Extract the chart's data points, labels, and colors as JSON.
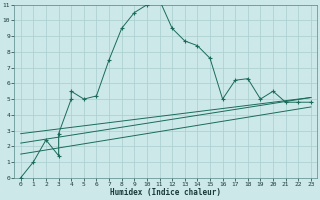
{
  "xlabel": "Humidex (Indice chaleur)",
  "bg_color": "#cce8e8",
  "grid_color": "#aacece",
  "line_color": "#1a6b5a",
  "xlim": [
    -0.5,
    23.5
  ],
  "ylim": [
    0,
    11
  ],
  "xtick_labels": [
    "0",
    "1",
    "2",
    "3",
    "4",
    "5",
    "6",
    "7",
    "8",
    "9",
    "10",
    "11",
    "12",
    "13",
    "14",
    "15",
    "16",
    "17",
    "18",
    "19",
    "20",
    "21",
    "22",
    "23"
  ],
  "xticks": [
    0,
    1,
    2,
    3,
    4,
    5,
    6,
    7,
    8,
    9,
    10,
    11,
    12,
    13,
    14,
    15,
    16,
    17,
    18,
    19,
    20,
    21,
    22,
    23
  ],
  "yticks": [
    0,
    1,
    2,
    3,
    4,
    5,
    6,
    7,
    8,
    9,
    10,
    11
  ],
  "series1_x": [
    0,
    1,
    2,
    3,
    3,
    4,
    4,
    5,
    6,
    7,
    8,
    9,
    10,
    11,
    12,
    13,
    14,
    15,
    16,
    17,
    18,
    19,
    20,
    21,
    22,
    23
  ],
  "series1_y": [
    0,
    1.0,
    2.4,
    1.4,
    2.8,
    5.0,
    5.5,
    5.0,
    5.2,
    7.5,
    9.5,
    10.5,
    11.0,
    11.3,
    9.5,
    8.7,
    8.4,
    7.6,
    5.0,
    6.2,
    6.3,
    5.0,
    5.5,
    4.8,
    4.8,
    4.8
  ],
  "series2_x": [
    0,
    23
  ],
  "series2_y": [
    2.2,
    5.1
  ],
  "series3_x": [
    0,
    23
  ],
  "series3_y": [
    2.8,
    5.1
  ],
  "series4_x": [
    0,
    23
  ],
  "series4_y": [
    1.5,
    4.5
  ]
}
